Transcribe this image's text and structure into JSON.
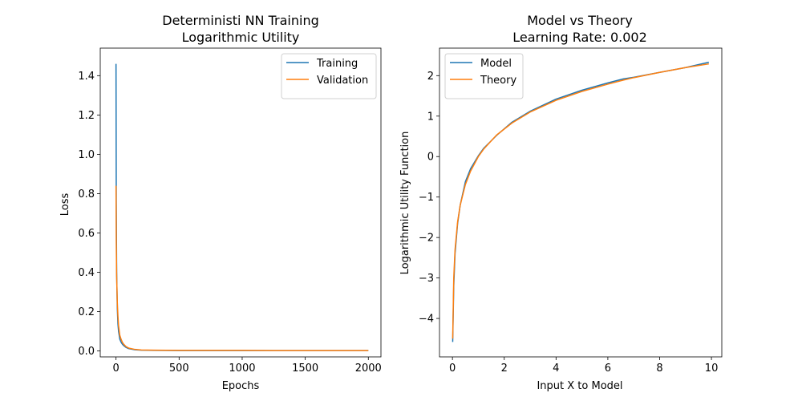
{
  "chart_data": [
    {
      "type": "line",
      "title": "Deterministi NN Training",
      "subtitle": "Logarithmic Utility",
      "xlabel": "Epochs",
      "ylabel": "Loss",
      "xlim": [
        -125,
        2100
      ],
      "ylim": [
        -0.03,
        1.54
      ],
      "xticks": [
        0,
        500,
        1000,
        1500,
        2000
      ],
      "xtick_labels": [
        "0",
        "500",
        "1000",
        "1500",
        "2000"
      ],
      "yticks": [
        0.0,
        0.2,
        0.4,
        0.6,
        0.8,
        1.0,
        1.2,
        1.4
      ],
      "ytick_labels": [
        "0.0",
        "0.2",
        "0.4",
        "0.6",
        "0.8",
        "1.0",
        "1.2",
        "1.4"
      ],
      "grid": false,
      "legend_position": "top-right",
      "series": [
        {
          "name": "Training",
          "color": "#1f77b4",
          "x": [
            0,
            2,
            5,
            10,
            15,
            20,
            30,
            40,
            50,
            60,
            80,
            100,
            150,
            200,
            300,
            500,
            750,
            1000,
            1250,
            1500,
            1750,
            2000
          ],
          "y": [
            1.46,
            0.75,
            0.4,
            0.22,
            0.14,
            0.1,
            0.06,
            0.045,
            0.035,
            0.028,
            0.018,
            0.012,
            0.006,
            0.004,
            0.003,
            0.002,
            0.002,
            0.002,
            0.002,
            0.002,
            0.002,
            0.002
          ]
        },
        {
          "name": "Validation",
          "color": "#ff7f0e",
          "x": [
            0,
            2,
            5,
            10,
            15,
            20,
            30,
            40,
            50,
            60,
            80,
            100,
            150,
            200,
            300,
            500,
            750,
            1000,
            1250,
            1500,
            1750,
            2000
          ],
          "y": [
            0.84,
            0.55,
            0.38,
            0.25,
            0.18,
            0.13,
            0.08,
            0.06,
            0.045,
            0.035,
            0.022,
            0.015,
            0.008,
            0.005,
            0.004,
            0.003,
            0.003,
            0.003,
            0.002,
            0.002,
            0.002,
            0.002
          ]
        }
      ]
    },
    {
      "type": "line",
      "title": "Model vs Theory",
      "subtitle": "Learning Rate: 0.002",
      "xlabel": "Input X to Model",
      "ylabel": "Logarithmic Utility Function",
      "xlim": [
        -0.5,
        10.4
      ],
      "ylim": [
        -4.95,
        2.68
      ],
      "xticks": [
        0,
        2,
        4,
        6,
        8,
        10
      ],
      "xtick_labels": [
        "0",
        "2",
        "4",
        "6",
        "8",
        "10"
      ],
      "yticks": [
        -4,
        -3,
        -2,
        -1,
        0,
        1,
        2
      ],
      "ytick_labels": [
        "−4",
        "−3",
        "−2",
        "−1",
        "0",
        "1",
        "2"
      ],
      "grid": false,
      "legend_position": "top-left",
      "series": [
        {
          "name": "Model",
          "color": "#1f77b4",
          "x": [
            0.01,
            0.05,
            0.1,
            0.2,
            0.3,
            0.5,
            0.7,
            1.0,
            1.2,
            1.7,
            2.3,
            3.0,
            4.0,
            5.0,
            6.0,
            6.6,
            7.0,
            8.0,
            9.0,
            9.9
          ],
          "y": [
            -4.58,
            -3.2,
            -2.4,
            -1.65,
            -1.2,
            -0.62,
            -0.3,
            0.02,
            0.2,
            0.52,
            0.85,
            1.12,
            1.42,
            1.64,
            1.82,
            1.92,
            1.96,
            2.08,
            2.2,
            2.33
          ]
        },
        {
          "name": "Theory",
          "color": "#ff7f0e",
          "x": [
            0.01,
            0.05,
            0.1,
            0.2,
            0.3,
            0.5,
            0.7,
            1.0,
            1.2,
            1.7,
            2.3,
            3.0,
            4.0,
            5.0,
            6.0,
            6.6,
            7.0,
            8.0,
            9.0,
            9.9
          ],
          "y": [
            -4.5,
            -3.0,
            -2.3,
            -1.61,
            -1.2,
            -0.69,
            -0.36,
            0.0,
            0.18,
            0.53,
            0.83,
            1.1,
            1.39,
            1.61,
            1.79,
            1.89,
            1.95,
            2.08,
            2.2,
            2.29
          ]
        }
      ]
    }
  ]
}
